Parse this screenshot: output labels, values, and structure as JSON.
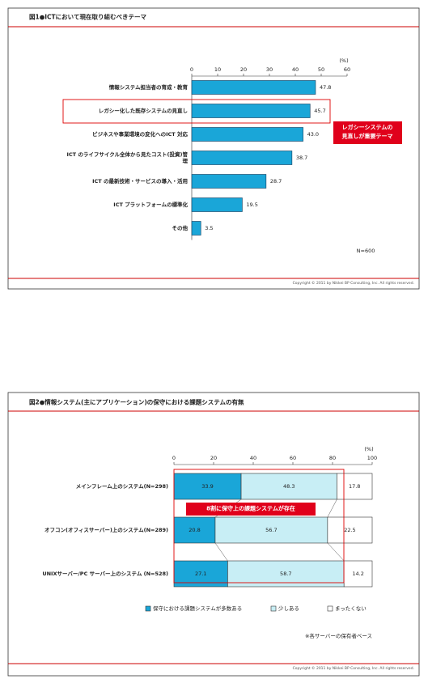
{
  "chart_data": [
    {
      "type": "bar",
      "orientation": "horizontal",
      "title": "図1●ICTにおいて現在取り組むべきテーマ",
      "categories": [
        "情報システム担当者の育成・教育",
        "レガシー化した既存システムの見直し",
        "ビジネスや事業環境の変化へのICT 対応",
        "ICT のライフサイクル全体から見たコスト(投資)管理",
        "ICT の最新技術・サービスの導入・活用",
        "ICT プラットフォームの標準化",
        "その他"
      ],
      "values": [
        47.8,
        45.7,
        43.0,
        38.7,
        28.7,
        19.5,
        3.5
      ],
      "value_labels": [
        "47.8",
        "45.7",
        "43.0",
        "38.7",
        "28.7",
        "19.5",
        "3.5"
      ],
      "color": "#1aa6d8",
      "xlim": [
        0,
        60
      ],
      "xticks": [
        0,
        10,
        20,
        30,
        40,
        50,
        60
      ],
      "unit_label": "(%)",
      "annotation": [
        "レガシーシステムの",
        "見直しが重要テーマ"
      ],
      "note": "N=600",
      "copyright": "Copyright © 2011 by Nikkei BP Consulting, Inc. All rights reserved."
    },
    {
      "type": "stacked_bar",
      "orientation": "horizontal",
      "title": "図2●情報システム(主にアプリケーション)の保守における課題システムの有無",
      "categories": [
        "メインフレーム上のシステム(N=298)",
        "オフコン(オフィスサーバー)上のシステム(N=289)",
        "UNIXサーバー/PC サーバー上のシステム (N=528)"
      ],
      "series": [
        {
          "name": "保守における課題システムが多数ある",
          "color": "#1aa6d8",
          "values": [
            33.9,
            20.8,
            27.1
          ]
        },
        {
          "name": "少しある",
          "color": "#c8eef5",
          "values": [
            48.3,
            56.7,
            58.7
          ]
        },
        {
          "name": "まったくない",
          "color": "#ffffff",
          "values": [
            17.8,
            22.5,
            14.2
          ]
        }
      ],
      "xlim": [
        0,
        100
      ],
      "xticks": [
        0,
        20,
        40,
        60,
        80,
        100
      ],
      "unit_label": "(%)",
      "annotation": "8割に保守上の課題システムが存在",
      "note": "※各サーバーの保有者ベース",
      "copyright": "Copyright © 2011 by Nikkei BP Consulting, Inc. All rights reserved."
    }
  ]
}
